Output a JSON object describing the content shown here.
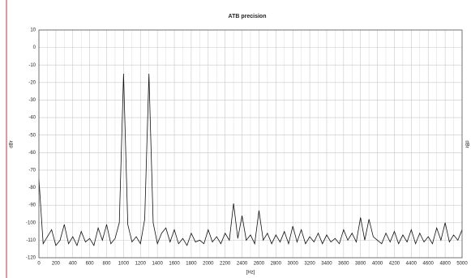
{
  "chart_data": {
    "type": "line",
    "title": "ATB precision",
    "xlabel": "[Hz]",
    "ylabel": "dBr",
    "y2label": "dBr",
    "x": [
      0,
      50,
      100,
      150,
      200,
      250,
      300,
      350,
      400,
      450,
      500,
      550,
      600,
      650,
      700,
      750,
      800,
      850,
      900,
      950,
      1000,
      1050,
      1100,
      1150,
      1200,
      1250,
      1300,
      1350,
      1400,
      1450,
      1500,
      1550,
      1600,
      1650,
      1700,
      1750,
      1800,
      1850,
      1900,
      1950,
      2000,
      2050,
      2100,
      2150,
      2200,
      2250,
      2300,
      2350,
      2400,
      2450,
      2500,
      2550,
      2600,
      2650,
      2700,
      2750,
      2800,
      2850,
      2900,
      2950,
      3000,
      3050,
      3100,
      3150,
      3200,
      3250,
      3300,
      3350,
      3400,
      3450,
      3500,
      3550,
      3600,
      3650,
      3700,
      3750,
      3800,
      3850,
      3900,
      3950,
      4000,
      4050,
      4100,
      4150,
      4200,
      4250,
      4300,
      4350,
      4400,
      4450,
      4500,
      4550,
      4600,
      4650,
      4700,
      4750,
      4800,
      4850,
      4900,
      4950,
      5000
    ],
    "series": [
      {
        "color": "#111111",
        "values": [
          -75,
          -112,
          -108,
          -104,
          -113,
          -110,
          -101,
          -112,
          -108,
          -113,
          -105,
          -111,
          -109,
          -113,
          -103,
          -110,
          -101,
          -112,
          -109,
          -100,
          -15,
          -101,
          -111,
          -108,
          -112,
          -98,
          -15,
          -100,
          -112,
          -106,
          -103,
          -111,
          -104,
          -112,
          -109,
          -113,
          -106,
          -111,
          -110,
          -112,
          -104,
          -111,
          -108,
          -112,
          -106,
          -110,
          -89,
          -109,
          -96,
          -110,
          -107,
          -112,
          -93,
          -110,
          -106,
          -112,
          -107,
          -111,
          -105,
          -112,
          -102,
          -111,
          -104,
          -112,
          -108,
          -111,
          -106,
          -112,
          -107,
          -111,
          -109,
          -112,
          -104,
          -110,
          -106,
          -111,
          -97,
          -110,
          -98,
          -108,
          -110,
          -112,
          -106,
          -111,
          -105,
          -112,
          -107,
          -111,
          -104,
          -112,
          -106,
          -111,
          -108,
          -112,
          -103,
          -110,
          -100,
          -111,
          -107,
          -110,
          -104
        ]
      }
    ],
    "xlim": [
      0,
      5000
    ],
    "ylim": [
      -120,
      10
    ],
    "xticks": [
      0,
      200,
      400,
      600,
      800,
      1000,
      1200,
      1400,
      1600,
      1800,
      2000,
      2200,
      2400,
      2600,
      2800,
      3000,
      3200,
      3400,
      3600,
      3800,
      4000,
      4200,
      4400,
      4600,
      4800,
      5000
    ],
    "yticks": [
      -120,
      -110,
      -100,
      -90,
      -80,
      -70,
      -60,
      -50,
      -40,
      -30,
      -20,
      -10,
      0,
      10
    ],
    "grid": true
  }
}
